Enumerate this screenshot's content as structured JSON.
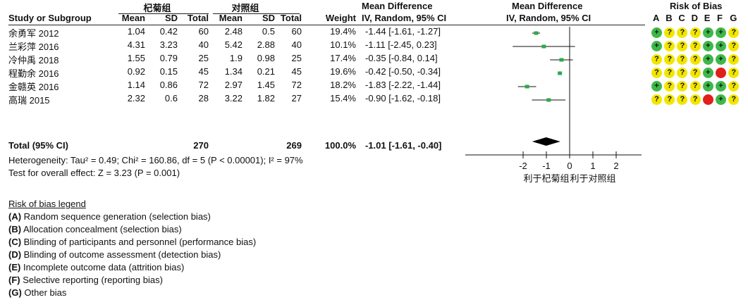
{
  "headers": {
    "group1": "杞菊组",
    "group2": "对照组",
    "mean_diff_col": "Mean Difference",
    "mean_diff_sub": "IV, Random, 95% CI",
    "plot_title": "Mean Difference",
    "plot_sub": "IV, Random, 95% CI",
    "rob_title": "Risk of Bias",
    "study": "Study or Subgroup",
    "mean": "Mean",
    "sd": "SD",
    "total": "Total",
    "weight": "Weight",
    "rob_letters": [
      "A",
      "B",
      "C",
      "D",
      "E",
      "F",
      "G"
    ]
  },
  "studies": [
    {
      "name": "余勇军 2012",
      "m1": "1.04",
      "sd1": "0.42",
      "n1": "60",
      "m2": "2.48",
      "sd2": "0.5",
      "n2": "60",
      "weight": "19.4%",
      "ci": "-1.44 [-1.61, -1.27]",
      "rob": [
        "+",
        "?",
        "?",
        "?",
        "+",
        "+",
        "?"
      ]
    },
    {
      "name": "兰彩萍 2016",
      "m1": "4.31",
      "sd1": "3.23",
      "n1": "40",
      "m2": "5.42",
      "sd2": "2.88",
      "n2": "40",
      "weight": "10.1%",
      "ci": "-1.11 [-2.45, 0.23]",
      "rob": [
        "+",
        "?",
        "?",
        "?",
        "+",
        "+",
        "?"
      ]
    },
    {
      "name": "冷仲禹 2018",
      "m1": "1.55",
      "sd1": "0.79",
      "n1": "25",
      "m2": "1.9",
      "sd2": "0.98",
      "n2": "25",
      "weight": "17.4%",
      "ci": "-0.35 [-0.84, 0.14]",
      "rob": [
        "?",
        "?",
        "?",
        "?",
        "+",
        "+",
        "?"
      ]
    },
    {
      "name": "程勤余 2016",
      "m1": "0.92",
      "sd1": "0.15",
      "n1": "45",
      "m2": "1.34",
      "sd2": "0.21",
      "n2": "45",
      "weight": "19.6%",
      "ci": "-0.42 [-0.50, -0.34]",
      "rob": [
        "?",
        "?",
        "?",
        "?",
        "+",
        "-",
        "?"
      ]
    },
    {
      "name": "金赣英 2016",
      "m1": "1.14",
      "sd1": "0.86",
      "n1": "72",
      "m2": "2.97",
      "sd2": "1.45",
      "n2": "72",
      "weight": "18.2%",
      "ci": "-1.83 [-2.22, -1.44]",
      "rob": [
        "+",
        "?",
        "?",
        "?",
        "+",
        "+",
        "?"
      ]
    },
    {
      "name": "高瑞 2015",
      "m1": "2.32",
      "sd1": "0.6",
      "n1": "28",
      "m2": "3.22",
      "sd2": "1.82",
      "n2": "27",
      "weight": "15.4%",
      "ci": "-0.90 [-1.62, -0.18]",
      "rob": [
        "?",
        "?",
        "?",
        "?",
        "-",
        "+",
        "?"
      ]
    }
  ],
  "total": {
    "label": "Total (95% CI)",
    "n1": "270",
    "n2": "269",
    "weight": "100.0%",
    "ci": "-1.01 [-1.61, -0.40]"
  },
  "heterogeneity": "Heterogeneity: Tau² = 0.49; Chi² = 160.86, df = 5 (P < 0.00001); I² = 97%",
  "overall_effect": "Test for overall effect: Z = 3.23 (P = 0.001)",
  "legend": {
    "title": "Risk of bias legend",
    "items": [
      {
        "key": "(A)",
        "text": " Random sequence generation (selection bias)"
      },
      {
        "key": "(B)",
        "text": " Allocation concealment (selection bias)"
      },
      {
        "key": "(C)",
        "text": " Blinding of participants and personnel (performance bias)"
      },
      {
        "key": "(D)",
        "text": " Blinding of outcome assessment (detection bias)"
      },
      {
        "key": "(E)",
        "text": " Incomplete outcome data (attrition bias)"
      },
      {
        "key": "(F)",
        "text": " Selective reporting (reporting bias)"
      },
      {
        "key": "(G)",
        "text": " Other bias"
      }
    ]
  },
  "colors": {
    "low": "#3db849",
    "unclear": "#f2e600",
    "high": "#e0201b",
    "point": "#2fa84a",
    "diamond": "#000000"
  },
  "chart_data": {
    "type": "forest",
    "xlim": [
      -2,
      2
    ],
    "ticks": [
      -2,
      -1,
      0,
      1,
      2
    ],
    "favours_left": "利于杞菊组",
    "favours_right": "利于对照组",
    "studies": [
      {
        "est": -1.44,
        "lo": -1.61,
        "hi": -1.27
      },
      {
        "est": -1.11,
        "lo": -2.45,
        "hi": 0.23
      },
      {
        "est": -0.35,
        "lo": -0.84,
        "hi": 0.14
      },
      {
        "est": -0.42,
        "lo": -0.5,
        "hi": -0.34
      },
      {
        "est": -1.83,
        "lo": -2.22,
        "hi": -1.44
      },
      {
        "est": -0.9,
        "lo": -1.62,
        "hi": -0.18
      }
    ],
    "pooled": {
      "est": -1.01,
      "lo": -1.61,
      "hi": -0.4
    }
  }
}
